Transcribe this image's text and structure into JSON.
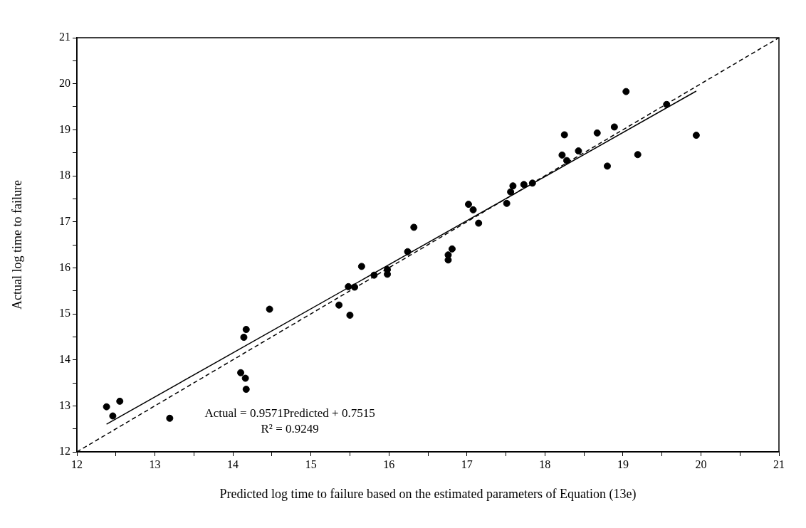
{
  "chart_data": {
    "type": "scatter",
    "xlabel": "Predicted log time to failure based on the estimated parameters of Equation (13e)",
    "ylabel": "Actual log time to failure",
    "xlim": [
      12,
      21
    ],
    "ylim": [
      12,
      21
    ],
    "xticks": [
      12,
      {
        "value": 12.5,
        "label": null
      },
      13,
      {
        "value": 13.5,
        "label": null
      },
      14,
      {
        "value": 14.5,
        "label": null
      },
      15,
      {
        "value": 15.5,
        "label": null
      },
      16,
      {
        "value": 16.5,
        "label": null
      },
      17,
      {
        "value": 17.5,
        "label": null
      },
      18,
      {
        "value": 18.5,
        "label": null
      },
      19,
      {
        "value": 19.5,
        "label": null
      },
      20,
      {
        "value": 20.5,
        "label": null
      },
      21
    ],
    "yticks": [
      12,
      {
        "value": 12.5,
        "label": null
      },
      13,
      {
        "value": 13.5,
        "label": null
      },
      14,
      {
        "value": 14.5,
        "label": null
      },
      15,
      {
        "value": 15.5,
        "label": null
      },
      16,
      {
        "value": 16.5,
        "label": null
      },
      17,
      {
        "value": 17.5,
        "label": null
      },
      18,
      {
        "value": 18.5,
        "label": null
      },
      19,
      {
        "value": 19.5,
        "label": null
      },
      20,
      {
        "value": 20.5,
        "label": null
      },
      21
    ],
    "grid": false,
    "legend": false,
    "marker": "circle",
    "series": [
      {
        "color": "#000000",
        "x": [
          12.38,
          12.46,
          12.55,
          13.19,
          14.1,
          14.16,
          14.17,
          14.14,
          14.17,
          14.47,
          15.36,
          15.48,
          15.5,
          15.56,
          15.65,
          15.81,
          15.98,
          15.98,
          16.24,
          16.32,
          16.76,
          16.76,
          16.81,
          17.02,
          17.08,
          17.15,
          17.51,
          17.56,
          17.59,
          17.73,
          17.84,
          18.22,
          18.25,
          18.28,
          18.43,
          18.67,
          18.8,
          18.89,
          19.04,
          19.19,
          19.56,
          19.94
        ],
        "values": [
          12.98,
          12.78,
          13.1,
          12.73,
          13.72,
          13.6,
          13.36,
          14.49,
          14.66,
          15.1,
          15.19,
          15.59,
          14.97,
          15.58,
          16.03,
          15.84,
          15.96,
          15.86,
          16.35,
          16.88,
          16.17,
          16.28,
          16.41,
          17.38,
          17.26,
          16.97,
          17.4,
          17.65,
          17.78,
          17.81,
          17.84,
          18.45,
          18.89,
          18.33,
          18.54,
          18.93,
          18.21,
          19.06,
          19.83,
          18.46,
          19.55,
          18.88
        ]
      },
      {
        "type": "line",
        "color": "#000000",
        "line_style": "solid",
        "marker": "none",
        "x": [
          12.38,
          19.94
        ],
        "values": [
          12.6,
          19.84
        ]
      },
      {
        "type": "line",
        "color": "#000000",
        "line_style": "dashed",
        "marker": "none",
        "x": [
          12,
          21
        ],
        "values": [
          12,
          21
        ]
      }
    ],
    "annotations": [
      "Actual = 0.9571Predicted + 0.7515",
      "R² = 0.9249"
    ]
  }
}
